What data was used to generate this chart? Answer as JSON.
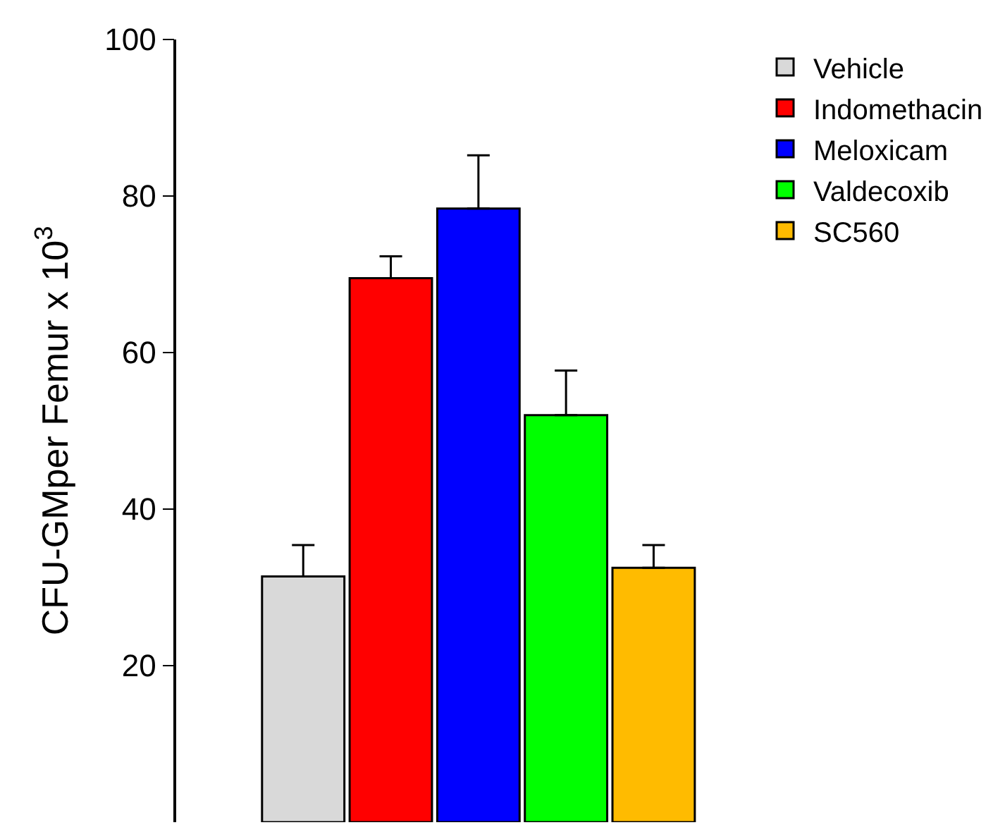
{
  "chart_data": {
    "type": "bar",
    "ylabel": "CFU-GMper Femur x 10$^{3}$",
    "categories": [
      null
    ],
    "series": [
      {
        "name": "Vehicle",
        "color": "#d9d9d9",
        "values": [
          31.4
        ],
        "errors": [
          [
            31.4,
            35.4
          ]
        ]
      },
      {
        "name": "Indomethacin",
        "color": "#ff0000",
        "values": [
          69.5
        ],
        "errors": [
          [
            69.5,
            72.3
          ]
        ]
      },
      {
        "name": "Meloxicam",
        "color": "#0000ff",
        "values": [
          78.4
        ],
        "errors": [
          [
            78.4,
            85.2
          ]
        ]
      },
      {
        "name": "Valdecoxib",
        "color": "#00ff00",
        "values": [
          52
        ],
        "errors": [
          [
            52,
            57.7
          ]
        ]
      },
      {
        "name": "SC560",
        "color": "#ffbb00",
        "values": [
          32.5
        ],
        "errors": [
          [
            32.5,
            35.4
          ]
        ]
      }
    ],
    "ylim": [
      0,
      100
    ],
    "yticks": [
      20,
      40,
      60,
      80,
      100
    ],
    "tick_labels": "y",
    "legend": "top right"
  }
}
